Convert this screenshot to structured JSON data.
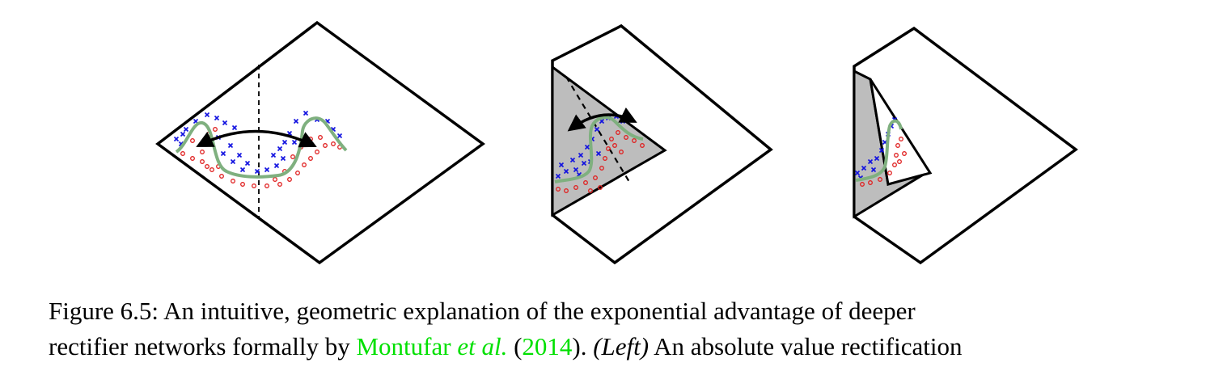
{
  "caption": {
    "line1": "Figure 6.5: An intuitive, geometric explanation of the exponential advantage of deeper",
    "line2_pre": "rectifier networks formally by ",
    "cite_author": "Montufar ",
    "cite_etal": "et al.",
    "cite_open": " (",
    "cite_year": "2014",
    "cite_close": ").  ",
    "left_label": "(Left)",
    "line2_post": " An absolute value rectification"
  },
  "colors": {
    "citation": "#00e000",
    "curve": "#7fb07f",
    "cross_points": "#1010e0",
    "circle_points": "#e02020",
    "fold_shade": "#bdbdbd"
  }
}
